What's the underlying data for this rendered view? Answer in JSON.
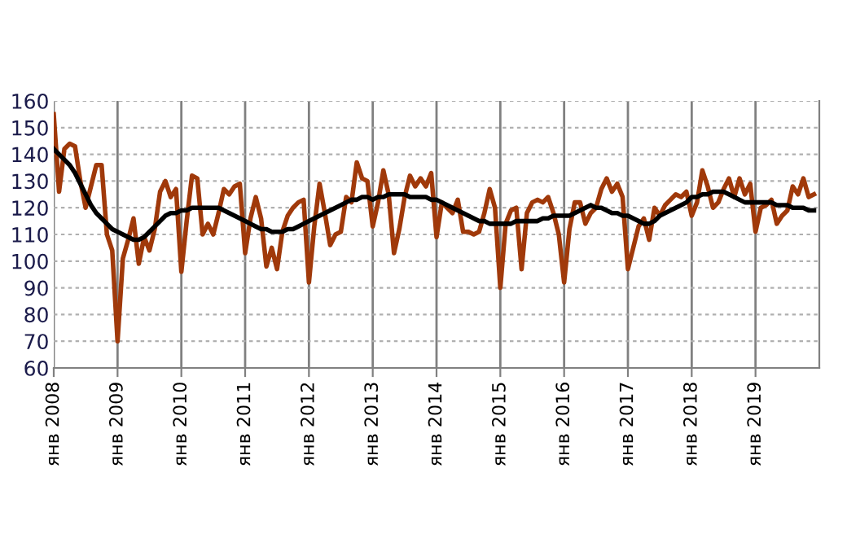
{
  "chart_data": {
    "type": "line",
    "categories": [
      "янв 2008",
      null,
      null,
      null,
      null,
      null,
      null,
      null,
      null,
      null,
      null,
      null,
      "янв 2009",
      null,
      null,
      null,
      null,
      null,
      null,
      null,
      null,
      null,
      null,
      null,
      "янв 2010",
      null,
      null,
      null,
      null,
      null,
      null,
      null,
      null,
      null,
      null,
      null,
      "янв 2011",
      null,
      null,
      null,
      null,
      null,
      null,
      null,
      null,
      null,
      null,
      null,
      "янв 2012",
      null,
      null,
      null,
      null,
      null,
      null,
      null,
      null,
      null,
      null,
      null,
      "янв 2013",
      null,
      null,
      null,
      null,
      null,
      null,
      null,
      null,
      null,
      null,
      null,
      "янв 2014",
      null,
      null,
      null,
      null,
      null,
      null,
      null,
      null,
      null,
      null,
      null,
      "янв 2015",
      null,
      null,
      null,
      null,
      null,
      null,
      null,
      null,
      null,
      null,
      null,
      "янв 2016",
      null,
      null,
      null,
      null,
      null,
      null,
      null,
      null,
      null,
      null,
      null,
      "янв 2017",
      null,
      null,
      null,
      null,
      null,
      null,
      null,
      null,
      null,
      null,
      null,
      "янв 2018",
      null,
      null,
      null,
      null,
      null,
      null,
      null,
      null,
      null,
      null,
      null,
      "янв 2019",
      null,
      null,
      null,
      null,
      null,
      null,
      null,
      null,
      null,
      null,
      null
    ],
    "series": [
      {
        "color": "#a0390a",
        "values": [
          155,
          126,
          142,
          144,
          143,
          130,
          120,
          128,
          136,
          136,
          110,
          104,
          70,
          101,
          108,
          116,
          99,
          109,
          104,
          112,
          126,
          130,
          124,
          127,
          96,
          115,
          132,
          131,
          110,
          114,
          110,
          118,
          127,
          125,
          128,
          129,
          103,
          116,
          124,
          116,
          98,
          105,
          97,
          111,
          117,
          120,
          122,
          123,
          92,
          113,
          129,
          118,
          106,
          110,
          111,
          124,
          122,
          137,
          131,
          130,
          113,
          122,
          134,
          125,
          103,
          112,
          124,
          132,
          128,
          131,
          128,
          133,
          109,
          122,
          120,
          118,
          123,
          111,
          111,
          110,
          111,
          118,
          127,
          120,
          90,
          114,
          119,
          120,
          97,
          118,
          122,
          123,
          122,
          124,
          118,
          110,
          92,
          112,
          122,
          122,
          114,
          118,
          120,
          127,
          131,
          126,
          129,
          124,
          97,
          105,
          113,
          116,
          108,
          120,
          117,
          121,
          123,
          125,
          124,
          126,
          117,
          122,
          134,
          128,
          120,
          122,
          127,
          131,
          124,
          131,
          125,
          129,
          111,
          120,
          121,
          123,
          114,
          117,
          119,
          128,
          125,
          131,
          124,
          125
        ]
      },
      {
        "color": "#000000",
        "values": [
          142,
          140,
          138,
          136,
          133,
          129,
          125,
          121,
          118,
          116,
          114,
          112,
          111,
          110,
          109,
          108,
          108,
          109,
          111,
          113,
          115,
          117,
          118,
          118,
          119,
          119,
          120,
          120,
          120,
          120,
          120,
          120,
          119,
          118,
          117,
          116,
          115,
          114,
          113,
          112,
          112,
          111,
          111,
          111,
          112,
          112,
          113,
          114,
          115,
          116,
          117,
          118,
          119,
          120,
          121,
          122,
          123,
          123,
          124,
          124,
          123,
          124,
          124,
          125,
          125,
          125,
          125,
          124,
          124,
          124,
          124,
          123,
          123,
          122,
          121,
          120,
          119,
          118,
          117,
          116,
          115,
          115,
          114,
          114,
          114,
          114,
          114,
          115,
          115,
          115,
          115,
          115,
          116,
          116,
          117,
          117,
          117,
          117,
          118,
          119,
          120,
          121,
          120,
          120,
          119,
          118,
          118,
          117,
          117,
          116,
          115,
          114,
          114,
          115,
          117,
          118,
          119,
          120,
          121,
          122,
          124,
          124,
          125,
          125,
          126,
          126,
          126,
          125,
          124,
          123,
          122,
          122,
          122,
          122,
          122,
          122,
          121,
          121,
          121,
          120,
          120,
          120,
          119,
          119
        ]
      }
    ],
    "ylim": [
      60,
      160
    ],
    "yticks": [
      60,
      70,
      80,
      90,
      100,
      110,
      120,
      130,
      140,
      150,
      160
    ],
    "grid": true,
    "marker": "none",
    "line_style": "solid"
  }
}
